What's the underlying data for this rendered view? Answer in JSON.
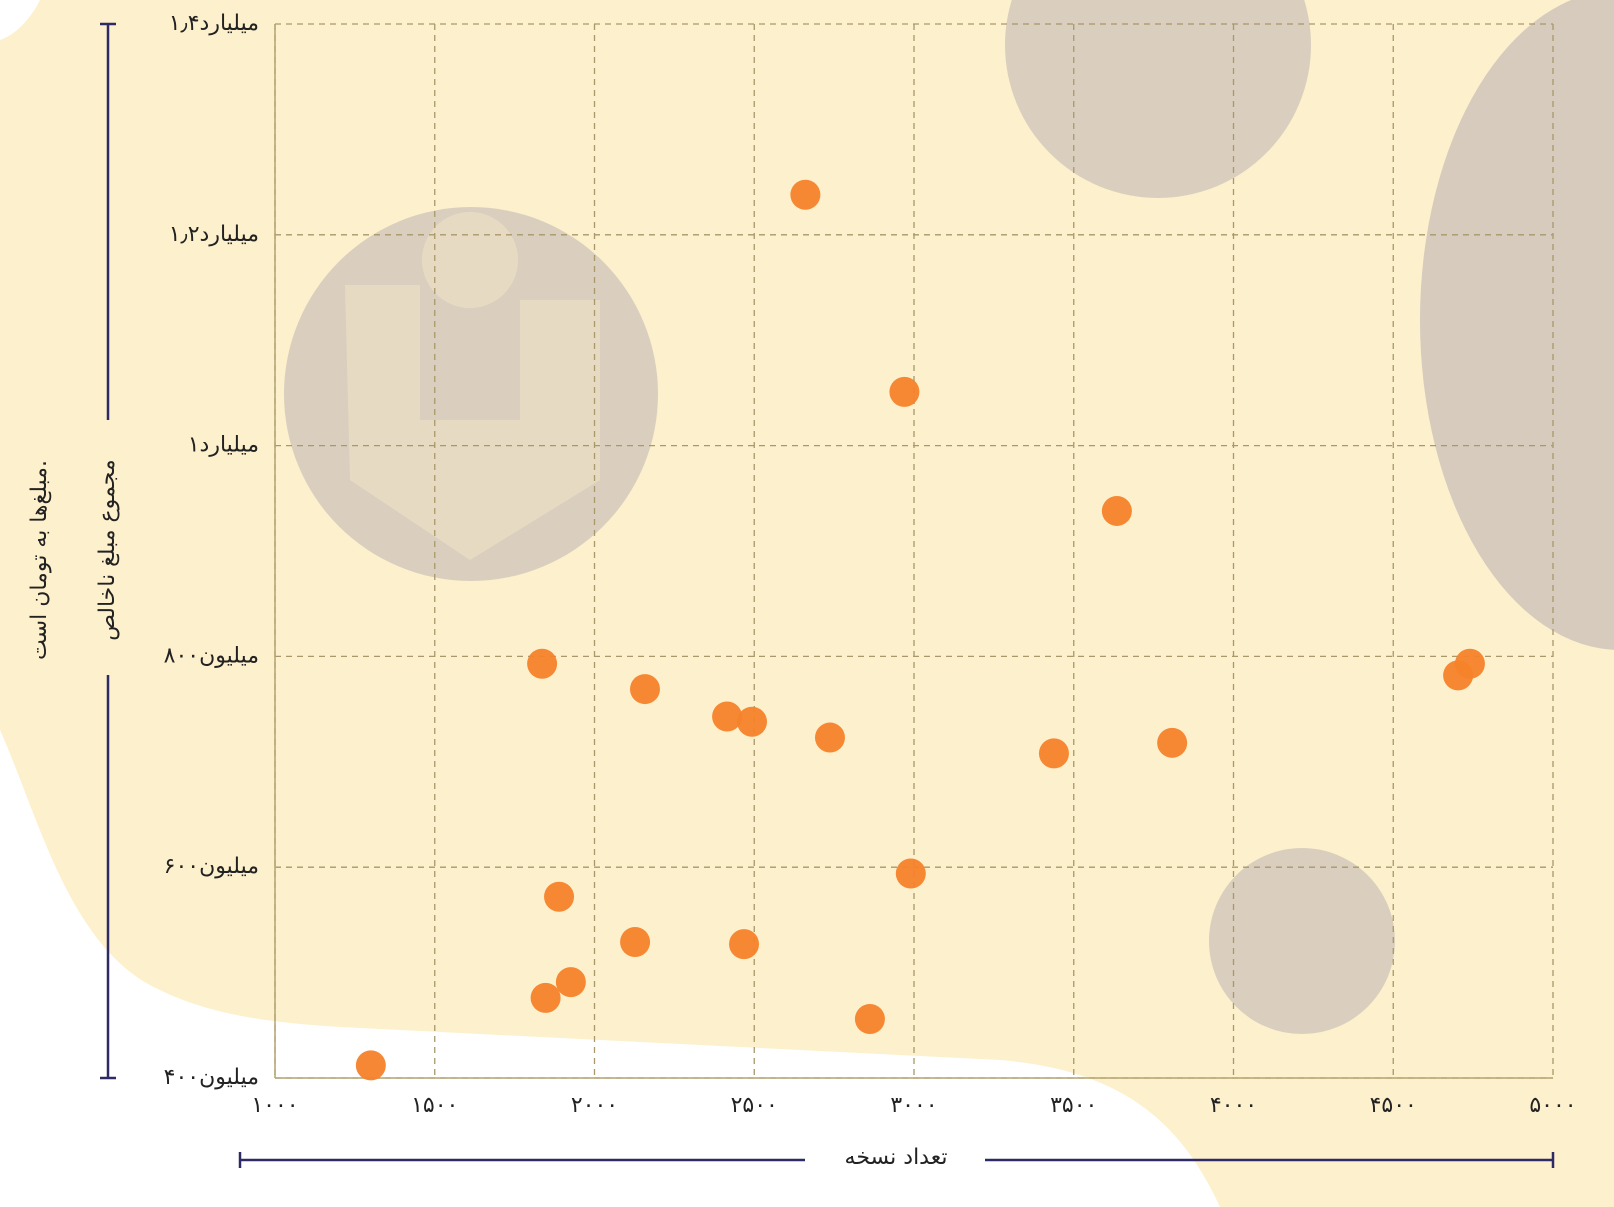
{
  "chart_data": {
    "type": "scatter",
    "xlabel": "تعداد نسخه",
    "ylabel": "مجموع مبلغ ناخالص",
    "note": "مبلغ‌ها به تومان است.",
    "color": "#f5822a",
    "grid": true,
    "xlim": [
      1000,
      5000
    ],
    "ylim": [
      400000000,
      1400000000
    ],
    "xticks": [
      {
        "value": 1000,
        "label": "۱۰۰۰"
      },
      {
        "value": 1500,
        "label": "۱۵۰۰"
      },
      {
        "value": 2000,
        "label": "۲۰۰۰"
      },
      {
        "value": 2500,
        "label": "۲۵۰۰"
      },
      {
        "value": 3000,
        "label": "۳۰۰۰"
      },
      {
        "value": 3500,
        "label": "۳۵۰۰"
      },
      {
        "value": 4000,
        "label": "۴۰۰۰"
      },
      {
        "value": 4500,
        "label": "۴۵۰۰"
      },
      {
        "value": 5000,
        "label": "۵۰۰۰"
      }
    ],
    "yticks": [
      {
        "value": 400000000,
        "label": "۴۰۰میلیون"
      },
      {
        "value": 600000000,
        "label": "۶۰۰میلیون"
      },
      {
        "value": 800000000,
        "label": "۸۰۰میلیون"
      },
      {
        "value": 1000000000,
        "label": "۱میلیارد"
      },
      {
        "value": 1200000000,
        "label": "۱٫۲میلیارد"
      },
      {
        "value": 1400000000,
        "label": "۱٫۴میلیارد"
      }
    ],
    "x": [
      2660,
      2970,
      3635,
      1836,
      2158,
      2415,
      2493,
      2737,
      3438,
      3808,
      4703,
      4740,
      2990,
      1889,
      2127,
      2468,
      1926,
      1847,
      2862,
      1300
    ],
    "values": [
      1238000000,
      1051000000,
      938000000,
      793000000,
      769000000,
      743000000,
      738000000,
      723000000,
      708000000,
      718000000,
      782000000,
      793000000,
      594000000,
      572000000,
      529000000,
      527000000,
      491000000,
      476000000,
      456000000,
      412000000
    ]
  }
}
